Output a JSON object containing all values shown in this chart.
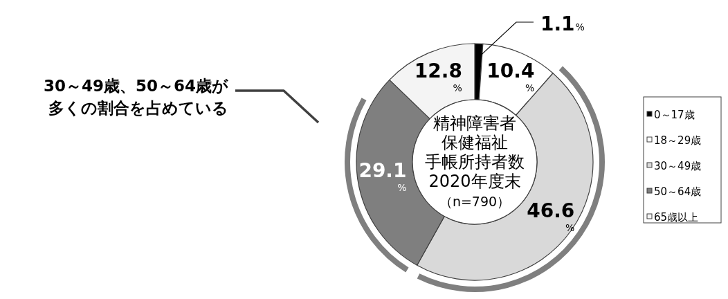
{
  "chart_data": {
    "type": "donut",
    "categories": [
      "0～17歳",
      "18～29歳",
      "30～49歳",
      "50～64歳",
      "65歳以上"
    ],
    "values": [
      1.1,
      10.4,
      46.6,
      29.1,
      12.8
    ],
    "colors": [
      "#000000",
      "#ffffff",
      "#d9d9d9",
      "#7f7f7f",
      "#f4f4f4"
    ],
    "value_labels": [
      "1.1%",
      "10.4%",
      "46.6%",
      "29.1%",
      "12.8%"
    ],
    "annotations": [
      "精神障害者",
      "保健福祉",
      "手帳所持者数",
      "2020年度末",
      "（n=790）",
      "30～49歳、50～64歳が",
      "多くの割合を占めている"
    ],
    "legend": "right"
  }
}
